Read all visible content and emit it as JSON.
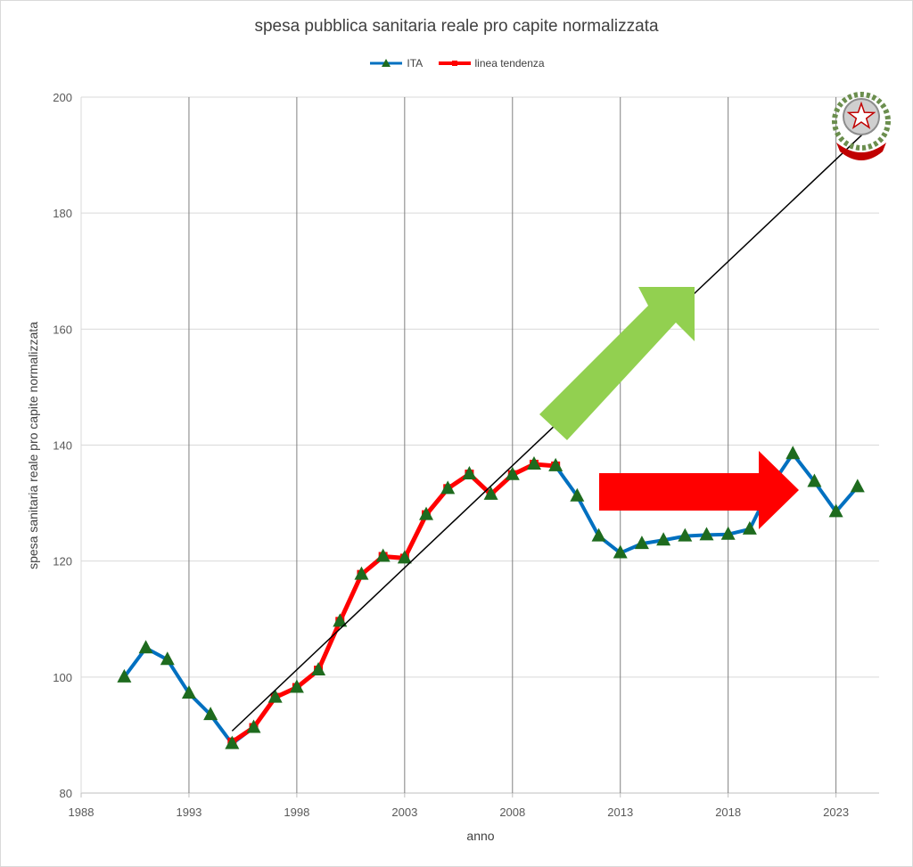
{
  "chart_data": {
    "type": "line",
    "title": "spesa pubblica sanitaria reale pro capite normalizzata",
    "xlabel": "anno",
    "ylabel": "spesa sanitaria reale pro capite normalizzata",
    "xlim": [
      1988,
      2025
    ],
    "ylim": [
      80,
      200
    ],
    "xticks": [
      1988,
      1993,
      1998,
      2003,
      2008,
      2013,
      2018,
      2023
    ],
    "yticks": [
      80,
      100,
      120,
      140,
      160,
      180,
      200
    ],
    "grid": true,
    "legend_position": "top",
    "series": [
      {
        "name": "ITA",
        "color": "#0070C0",
        "marker": "triangle",
        "marker_color": "#1E6B1E",
        "x": [
          1990,
          1991,
          1992,
          1993,
          1994,
          1995,
          1996,
          1997,
          1998,
          1999,
          2000,
          2001,
          2002,
          2003,
          2004,
          2005,
          2006,
          2007,
          2008,
          2009,
          2010,
          2011,
          2012,
          2013,
          2014,
          2015,
          2016,
          2017,
          2018,
          2019,
          2020,
          2021,
          2022,
          2023,
          2024
        ],
        "values": [
          100,
          105,
          103,
          97.2,
          93.5,
          88.5,
          91.3,
          96.5,
          98.2,
          101.2,
          109.6,
          117.7,
          120.8,
          120.5,
          128,
          132.5,
          135,
          131.5,
          134.9,
          136.7,
          136.4,
          131.2,
          124.3,
          121.4,
          123,
          123.6,
          124.3,
          124.5,
          124.6,
          125.5,
          133,
          138.5,
          133.7,
          128.5,
          132.8
        ]
      },
      {
        "name": "linea tendenza",
        "color": "#FF0000",
        "x": [
          1995,
          1996,
          1997,
          1998,
          1999,
          2000,
          2001,
          2002,
          2003,
          2004,
          2005,
          2006,
          2007,
          2008,
          2009,
          2010
        ],
        "values": [
          88.8,
          91.3,
          96.5,
          98.2,
          101.2,
          109.6,
          117.7,
          120.8,
          120.5,
          128,
          132.5,
          135,
          131.5,
          134.9,
          136.7,
          136.4
        ]
      }
    ],
    "trend_line": {
      "x": [
        1995,
        2025
      ],
      "values": [
        90.7,
        196.3
      ],
      "color": "#000000"
    },
    "annotations": [
      {
        "type": "arrow",
        "color": "#92D050",
        "direction": "up-right"
      },
      {
        "type": "arrow",
        "color": "#FF0000",
        "direction": "right"
      },
      {
        "type": "emblem",
        "name": "emblem-repubblica-italiana",
        "text": "REPUBBLICA ITALIANA"
      }
    ]
  }
}
